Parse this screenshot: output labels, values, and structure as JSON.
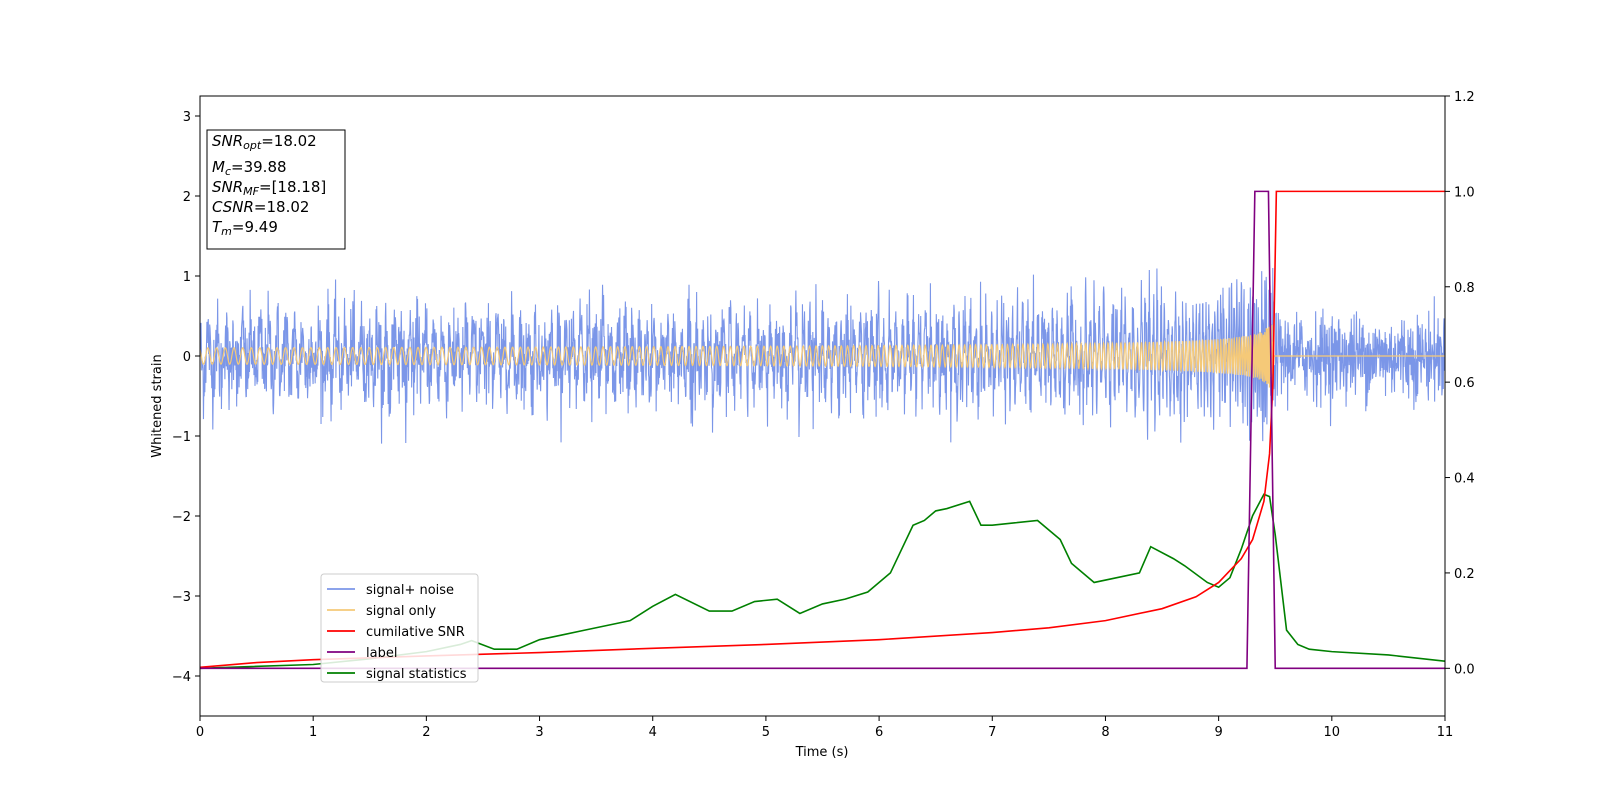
{
  "chart_data": {
    "type": "line",
    "title": "",
    "xlabel": "Time (s)",
    "ylabel": "Whitened strain",
    "y2label": "",
    "xlim": [
      0,
      11
    ],
    "ylim": [
      -4.5,
      3.25
    ],
    "y2lim": [
      -0.1,
      1.2
    ],
    "x_ticks": [
      0,
      1,
      2,
      3,
      4,
      5,
      6,
      7,
      8,
      9,
      10,
      11
    ],
    "y_ticks": [
      -4,
      -3,
      -2,
      -1,
      0,
      1,
      2,
      3
    ],
    "y2_ticks": [
      0.0,
      0.2,
      0.4,
      0.6,
      0.8,
      1.0,
      1.2
    ],
    "y2_tick_labels": [
      "0.0",
      "0.2",
      "0.4",
      "0.6",
      "0.8",
      "1.0",
      "1.2"
    ],
    "grid": false,
    "legend_position": "lower-left",
    "info_box": {
      "position": "upper-left",
      "lines": [
        {
          "base": "SNR",
          "sub": "opt",
          "value": "=18.02"
        },
        {
          "base": "M",
          "sub": "c",
          "value": "=39.88"
        },
        {
          "base": "SNR",
          "sub": "MF",
          "value": "=[18.18]"
        },
        {
          "base": "CSNR",
          "sub": "",
          "value": "=18.02"
        },
        {
          "base": "T",
          "sub": "m",
          "value": "=9.49"
        }
      ]
    },
    "series": [
      {
        "name": "signal+ noise",
        "axis": "left",
        "color": "#7b96e8",
        "kind": "noise",
        "envelope": 0.55,
        "peak_amplitude": 1.15,
        "min_value": -1.1
      },
      {
        "name": "signal only",
        "axis": "left",
        "color": "#f5c978",
        "kind": "chirp",
        "merger_time": 9.49,
        "peak_amplitude": 0.4
      },
      {
        "name": "cumilative SNR",
        "axis": "right",
        "color": "#ff0000",
        "x": [
          0,
          0.5,
          1,
          2,
          3,
          4,
          5,
          6,
          7,
          7.5,
          8,
          8.5,
          8.8,
          9.0,
          9.2,
          9.3,
          9.4,
          9.45,
          9.48,
          9.51,
          11
        ],
        "y": [
          0.002,
          0.012,
          0.018,
          0.026,
          0.033,
          0.042,
          0.05,
          0.06,
          0.075,
          0.085,
          0.1,
          0.125,
          0.15,
          0.18,
          0.23,
          0.27,
          0.35,
          0.45,
          0.6,
          1.0,
          1.0
        ]
      },
      {
        "name": "label",
        "axis": "right",
        "color": "#800080",
        "x": [
          0,
          9.25,
          9.32,
          9.44,
          9.5,
          11
        ],
        "y": [
          0,
          0,
          1.0,
          1.0,
          0,
          0
        ]
      },
      {
        "name": "signal statistics",
        "axis": "right",
        "color": "#008000",
        "x": [
          0,
          1.0,
          1.5,
          2.0,
          2.3,
          2.4,
          2.6,
          2.8,
          3.0,
          3.2,
          3.4,
          3.6,
          3.8,
          4.0,
          4.2,
          4.5,
          4.7,
          4.9,
          5.1,
          5.3,
          5.5,
          5.7,
          5.9,
          6.1,
          6.2,
          6.3,
          6.4,
          6.5,
          6.6,
          6.8,
          6.9,
          7.0,
          7.2,
          7.4,
          7.6,
          7.7,
          7.9,
          8.1,
          8.3,
          8.4,
          8.6,
          8.7,
          8.9,
          9.0,
          9.1,
          9.2,
          9.3,
          9.4,
          9.45,
          9.5,
          9.6,
          9.7,
          9.8,
          10.0,
          10.5,
          11.0
        ],
        "y": [
          0.0,
          0.008,
          0.02,
          0.035,
          0.05,
          0.058,
          0.04,
          0.04,
          0.06,
          0.07,
          0.08,
          0.09,
          0.1,
          0.13,
          0.155,
          0.12,
          0.12,
          0.14,
          0.145,
          0.115,
          0.135,
          0.145,
          0.16,
          0.2,
          0.25,
          0.3,
          0.31,
          0.33,
          0.335,
          0.35,
          0.3,
          0.3,
          0.305,
          0.31,
          0.27,
          0.22,
          0.18,
          0.19,
          0.2,
          0.255,
          0.23,
          0.215,
          0.18,
          0.17,
          0.19,
          0.25,
          0.32,
          0.365,
          0.36,
          0.28,
          0.08,
          0.05,
          0.04,
          0.035,
          0.028,
          0.015
        ]
      }
    ]
  }
}
